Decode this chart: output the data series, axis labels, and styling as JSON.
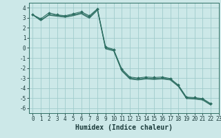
{
  "xlabel": "Humidex (Indice chaleur)",
  "bg_color": "#cce8e8",
  "grid_color": "#a0cccc",
  "line_color": "#2d6e62",
  "xlim": [
    -0.5,
    23
  ],
  "ylim": [
    -6.5,
    4.5
  ],
  "xticks": [
    0,
    1,
    2,
    3,
    4,
    5,
    6,
    7,
    8,
    9,
    10,
    11,
    12,
    13,
    14,
    15,
    16,
    17,
    18,
    19,
    20,
    21,
    22,
    23
  ],
  "yticks": [
    -6,
    -5,
    -4,
    -3,
    -2,
    -1,
    0,
    1,
    2,
    3,
    4
  ],
  "series": [
    [
      3.3,
      2.9,
      3.5,
      3.3,
      3.2,
      3.4,
      3.6,
      3.2,
      3.9,
      0.1,
      -0.15,
      -2.1,
      -2.9,
      -3.0,
      -2.9,
      -2.95,
      -2.9,
      -3.05,
      -3.7,
      -4.9,
      -4.95,
      -5.05,
      -5.55
    ],
    [
      3.3,
      2.75,
      3.35,
      3.25,
      3.15,
      3.3,
      3.5,
      3.1,
      3.85,
      0.0,
      -0.2,
      -2.2,
      -3.0,
      -3.1,
      -3.0,
      -3.05,
      -3.0,
      -3.1,
      -3.75,
      -4.95,
      -5.0,
      -5.1,
      -5.6
    ],
    [
      3.3,
      2.7,
      3.3,
      3.2,
      3.1,
      3.25,
      3.45,
      3.0,
      3.8,
      -0.05,
      -0.25,
      -2.25,
      -3.05,
      -3.15,
      -3.05,
      -3.1,
      -3.05,
      -3.15,
      -3.8,
      -5.0,
      -5.05,
      -5.15,
      -5.65
    ],
    [
      3.3,
      2.8,
      3.25,
      3.15,
      3.05,
      3.2,
      3.4,
      2.95,
      3.75,
      -0.1,
      -0.3,
      -2.3,
      -3.1,
      -3.2,
      -3.1,
      -3.15,
      -3.1,
      -3.2,
      -3.85,
      -5.05,
      -5.1,
      -5.2,
      -5.7
    ]
  ],
  "tick_fontsize": 5.5,
  "xlabel_fontsize": 7.0
}
